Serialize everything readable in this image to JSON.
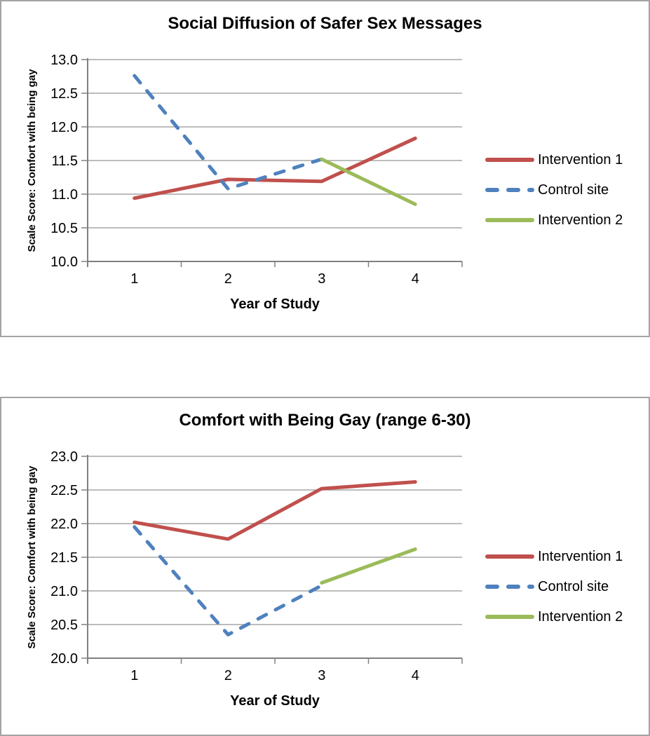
{
  "theme": {
    "background": "#ffffff",
    "panel_border": "#a4a4a4",
    "grid_color": "#a6a6a6",
    "axis_color": "#808080",
    "text_color": "#000000"
  },
  "chart_data": [
    {
      "type": "line",
      "title": "Social Diffusion of Safer Sex Messages",
      "xlabel": "Year of Study",
      "ylabel": "Scale Score: Comfort with being gay",
      "categories": [
        "1",
        "2",
        "3",
        "4"
      ],
      "ylim": [
        10.0,
        13.0
      ],
      "ytick_step": 0.5,
      "yticks": [
        "13.0",
        "12.5",
        "12.0",
        "11.5",
        "11.0",
        "10.5",
        "10.0"
      ],
      "grid": true,
      "legend_position": "right",
      "series": [
        {
          "name": "Intervention 1",
          "color": "#C0504D",
          "dash": false,
          "values": [
            10.94,
            11.22,
            11.19,
            11.83
          ]
        },
        {
          "name": "Control site",
          "color": "#4F81BD",
          "dash": true,
          "values": [
            12.76,
            11.08,
            11.52,
            null
          ]
        },
        {
          "name": "Intervention 2",
          "color": "#9BBB59",
          "dash": false,
          "values": [
            null,
            null,
            11.52,
            10.85
          ]
        }
      ]
    },
    {
      "type": "line",
      "title": "Comfort with Being Gay (range 6-30)",
      "xlabel": "Year of Study",
      "ylabel": "Scale Score: Comfort with being gay",
      "categories": [
        "1",
        "2",
        "3",
        "4"
      ],
      "ylim": [
        20.0,
        23.0
      ],
      "ytick_step": 0.5,
      "yticks": [
        "23.0",
        "22.5",
        "22.0",
        "21.5",
        "21.0",
        "20.5",
        "20.0"
      ],
      "grid": true,
      "legend_position": "right",
      "series": [
        {
          "name": "Intervention 1",
          "color": "#C0504D",
          "dash": false,
          "values": [
            22.02,
            21.77,
            22.52,
            22.62
          ]
        },
        {
          "name": "Control site",
          "color": "#4F81BD",
          "dash": true,
          "values": [
            21.95,
            20.35,
            21.08,
            null
          ]
        },
        {
          "name": "Intervention 2",
          "color": "#9BBB59",
          "dash": false,
          "values": [
            null,
            null,
            21.12,
            21.62
          ]
        }
      ]
    }
  ]
}
